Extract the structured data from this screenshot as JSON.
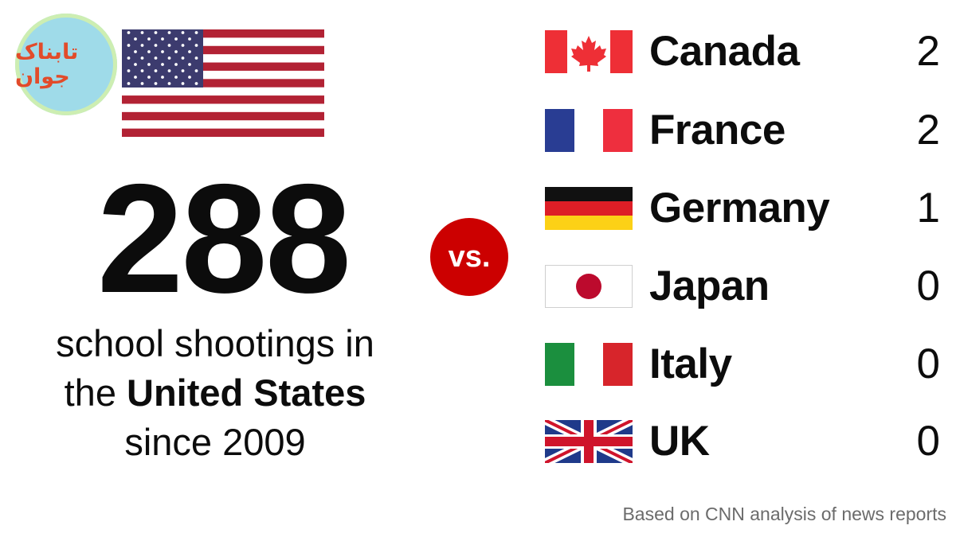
{
  "watermark": {
    "text": "تابناک جوان"
  },
  "headline": {
    "number": "288",
    "line1": "school shootings in",
    "line2_prefix": "the ",
    "line2_bold": "United States",
    "line3": "since 2009"
  },
  "vs_label": "vs.",
  "source": "Based on CNN analysis of news reports",
  "colors": {
    "vs_red": "#cc0000",
    "text": "#0c0c0c",
    "source_gray": "#6b6b6b"
  },
  "chart_data": {
    "type": "table",
    "title": "",
    "highlight": {
      "country": "United States",
      "value": 288
    },
    "categories": [
      "Canada",
      "France",
      "Germany",
      "Japan",
      "Italy",
      "UK"
    ],
    "values": [
      2,
      2,
      1,
      0,
      0,
      0
    ],
    "rows": [
      {
        "country": "Canada",
        "count": "2",
        "flag_icon": "canada-flag-icon"
      },
      {
        "country": "France",
        "count": "2",
        "flag_icon": "france-flag-icon"
      },
      {
        "country": "Germany",
        "count": "1",
        "flag_icon": "germany-flag-icon"
      },
      {
        "country": "Japan",
        "count": "0",
        "flag_icon": "japan-flag-icon"
      },
      {
        "country": "Italy",
        "count": "0",
        "flag_icon": "italy-flag-icon"
      },
      {
        "country": "UK",
        "count": "0",
        "flag_icon": "uk-flag-icon"
      }
    ]
  }
}
